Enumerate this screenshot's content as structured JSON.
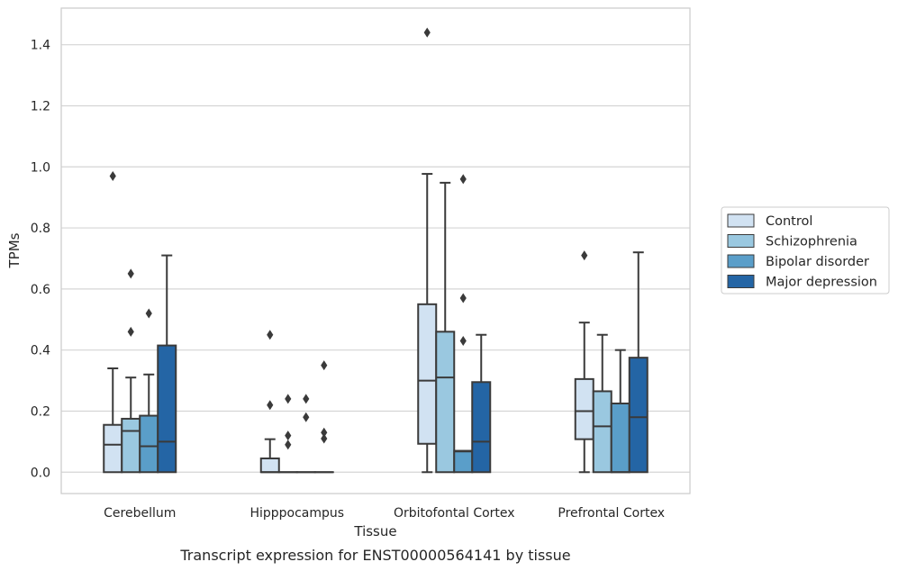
{
  "chart_data": {
    "type": "box",
    "title": "",
    "caption": "Transcript expression for ENST00000564141 by tissue",
    "xlabel": "Tissue",
    "ylabel": "TPMs",
    "ylim": [
      -0.07,
      1.52
    ],
    "yticks": [
      0.0,
      0.2,
      0.4,
      0.6,
      0.8,
      1.0,
      1.2,
      1.4
    ],
    "ytick_labels": [
      "0.0",
      "0.2",
      "0.4",
      "0.6",
      "0.8",
      "1.0",
      "1.2",
      "1.4"
    ],
    "grid": "horizontal",
    "legend_position": "right",
    "categories": [
      "Cerebellum",
      "Hipppocampus",
      "Orbitofontal Cortex",
      "Prefrontal Cortex"
    ],
    "series": [
      {
        "name": "Control",
        "color": "#d1e2f2",
        "boxes": [
          {
            "q1": 0.0,
            "median": 0.09,
            "q3": 0.155,
            "whisker_low": 0.0,
            "whisker_high": 0.34,
            "outliers": [
              0.97
            ]
          },
          {
            "q1": 0.0,
            "median": 0.0,
            "q3": 0.045,
            "whisker_low": 0.0,
            "whisker_high": 0.108,
            "outliers": [
              0.45,
              0.22
            ]
          },
          {
            "q1": 0.093,
            "median": 0.3,
            "q3": 0.55,
            "whisker_low": 0.0,
            "whisker_high": 0.977,
            "outliers": [
              1.44
            ]
          },
          {
            "q1": 0.108,
            "median": 0.2,
            "q3": 0.305,
            "whisker_low": 0.0,
            "whisker_high": 0.49,
            "outliers": [
              0.71
            ]
          }
        ]
      },
      {
        "name": "Schizophrenia",
        "color": "#9ac8e0",
        "boxes": [
          {
            "q1": 0.0,
            "median": 0.135,
            "q3": 0.175,
            "whisker_low": 0.0,
            "whisker_high": 0.31,
            "outliers": [
              0.65,
              0.46
            ]
          },
          {
            "q1": 0.0,
            "median": 0.0,
            "q3": 0.0,
            "whisker_low": 0.0,
            "whisker_high": 0.0,
            "outliers": [
              0.24,
              0.12,
              0.09
            ]
          },
          {
            "q1": 0.0,
            "median": 0.31,
            "q3": 0.46,
            "whisker_low": 0.0,
            "whisker_high": 0.948,
            "outliers": []
          },
          {
            "q1": 0.0,
            "median": 0.15,
            "q3": 0.265,
            "whisker_low": 0.0,
            "whisker_high": 0.45,
            "outliers": []
          }
        ]
      },
      {
        "name": "Bipolar disorder",
        "color": "#5a9ec9",
        "boxes": [
          {
            "q1": 0.0,
            "median": 0.085,
            "q3": 0.185,
            "whisker_low": 0.0,
            "whisker_high": 0.32,
            "outliers": [
              0.52
            ]
          },
          {
            "q1": 0.0,
            "median": 0.0,
            "q3": 0.0,
            "whisker_low": 0.0,
            "whisker_high": 0.0,
            "outliers": [
              0.24,
              0.18
            ]
          },
          {
            "q1": 0.0,
            "median": 0.068,
            "q3": 0.07,
            "whisker_low": 0.0,
            "whisker_high": 0.07,
            "outliers": [
              0.96,
              0.57,
              0.43
            ]
          },
          {
            "q1": 0.0,
            "median": 0.0,
            "q3": 0.225,
            "whisker_low": 0.0,
            "whisker_high": 0.4,
            "outliers": []
          }
        ]
      },
      {
        "name": "Major depression",
        "color": "#2465a5",
        "boxes": [
          {
            "q1": 0.0,
            "median": 0.1,
            "q3": 0.415,
            "whisker_low": 0.0,
            "whisker_high": 0.71,
            "outliers": []
          },
          {
            "q1": 0.0,
            "median": 0.0,
            "q3": 0.0,
            "whisker_low": 0.0,
            "whisker_high": 0.0,
            "outliers": [
              0.35,
              0.13,
              0.11
            ]
          },
          {
            "q1": 0.0,
            "median": 0.1,
            "q3": 0.295,
            "whisker_low": 0.0,
            "whisker_high": 0.45,
            "outliers": []
          },
          {
            "q1": 0.0,
            "median": 0.18,
            "q3": 0.375,
            "whisker_low": 0.0,
            "whisker_high": 0.72,
            "outliers": []
          }
        ]
      }
    ]
  }
}
